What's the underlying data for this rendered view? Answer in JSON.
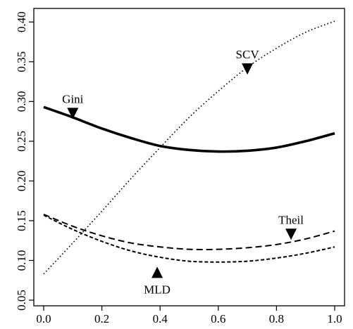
{
  "chart_data": {
    "type": "line",
    "title": "",
    "xlabel": "",
    "ylabel": "",
    "xlim": [
      0,
      1
    ],
    "ylim": [
      0.05,
      0.41
    ],
    "x_ticks": [
      0.0,
      0.2,
      0.4,
      0.6,
      0.8,
      1.0
    ],
    "x_tick_labels": [
      "0.0",
      "0.2",
      "0.4",
      "0.6",
      "0.8",
      "1.0"
    ],
    "y_ticks": [
      0.05,
      0.1,
      0.15,
      0.2,
      0.25,
      0.3,
      0.35,
      0.4
    ],
    "y_tick_labels": [
      "0.05",
      "0.10",
      "0.15",
      "0.20",
      "0.25",
      "0.30",
      "0.35",
      "0.40"
    ],
    "grid": false,
    "legend": "none",
    "x": [
      0.0,
      0.1,
      0.2,
      0.3,
      0.4,
      0.5,
      0.6,
      0.7,
      0.8,
      0.9,
      1.0
    ],
    "series": [
      {
        "name": "Gini",
        "style": "solid-thick",
        "values": [
          0.293,
          0.28,
          0.266,
          0.254,
          0.244,
          0.239,
          0.237,
          0.238,
          0.242,
          0.25,
          0.26
        ]
      },
      {
        "name": "SCV",
        "style": "dotted",
        "values": [
          0.083,
          0.122,
          0.162,
          0.203,
          0.242,
          0.28,
          0.313,
          0.343,
          0.367,
          0.387,
          0.401
        ]
      },
      {
        "name": "Theil",
        "style": "dashed",
        "values": [
          0.158,
          0.143,
          0.131,
          0.122,
          0.117,
          0.114,
          0.114,
          0.116,
          0.12,
          0.127,
          0.137
        ]
      },
      {
        "name": "MLD",
        "style": "dashed-dense",
        "values": [
          0.157,
          0.139,
          0.124,
          0.112,
          0.104,
          0.099,
          0.098,
          0.099,
          0.103,
          0.109,
          0.117
        ]
      }
    ],
    "annotations": [
      {
        "text": "Gini",
        "pointer": "down",
        "at_x": 0.1,
        "at_y": 0.284
      },
      {
        "text": "SCV",
        "pointer": "down",
        "at_x": 0.7,
        "at_y": 0.34
      },
      {
        "text": "Theil",
        "pointer": "down",
        "at_x": 0.85,
        "at_y": 0.132
      },
      {
        "text": "MLD",
        "pointer": "up",
        "at_x": 0.39,
        "at_y": 0.085
      }
    ]
  }
}
